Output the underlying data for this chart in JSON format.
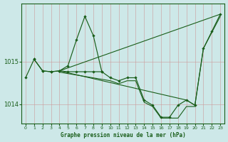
{
  "title": "Graphe pression niveau de la mer (hPa)",
  "bg_color": "#cde8e8",
  "line_color": "#1a5e1a",
  "grid_color": "#b8d0d0",
  "xlim": [
    -0.5,
    23.5
  ],
  "ylim": [
    1013.55,
    1016.35
  ],
  "x_ticks": [
    0,
    1,
    2,
    3,
    4,
    5,
    6,
    7,
    8,
    9,
    10,
    11,
    12,
    13,
    14,
    15,
    16,
    17,
    18,
    19,
    20,
    21,
    22,
    23
  ],
  "y_ticks": [
    1014,
    1015
  ],
  "line_spike": {
    "x": [
      1,
      2,
      3,
      4,
      5,
      6,
      7,
      8,
      9
    ],
    "y": [
      1015.05,
      1014.78,
      1014.76,
      1014.78,
      1014.9,
      1015.5,
      1016.05,
      1015.6,
      1014.76
    ]
  },
  "line_main": {
    "x": [
      0,
      1,
      2,
      3,
      4,
      5,
      6,
      7,
      8,
      9,
      10,
      11,
      12,
      13,
      14,
      15,
      16,
      17,
      18,
      19,
      20,
      21,
      22,
      23
    ],
    "y": [
      1014.62,
      1015.05,
      1014.78,
      1014.76,
      1014.78,
      1014.76,
      1014.76,
      1014.76,
      1014.76,
      1014.76,
      1014.62,
      1014.55,
      1014.62,
      1014.62,
      1014.1,
      1013.98,
      1013.7,
      1013.7,
      1013.98,
      1014.1,
      1013.98,
      1015.3,
      1015.7,
      1016.1
    ]
  },
  "line_trend_top": {
    "x": [
      4,
      23
    ],
    "y": [
      1014.78,
      1016.1
    ]
  },
  "line_trend_mid": {
    "x": [
      4,
      19,
      20,
      21,
      23
    ],
    "y": [
      1014.78,
      1014.1,
      1013.98,
      1015.3,
      1016.05
    ]
  },
  "line_trend_low": {
    "x": [
      4,
      10,
      11,
      12,
      13,
      14,
      15,
      16,
      17,
      18,
      19,
      20
    ],
    "y": [
      1014.75,
      1014.55,
      1014.48,
      1014.55,
      1014.55,
      1014.05,
      1013.95,
      1013.68,
      1013.68,
      1013.68,
      1013.95,
      1013.95
    ]
  },
  "line_from_start": {
    "x": [
      0,
      1,
      4
    ],
    "y": [
      1014.62,
      1015.05,
      1014.78
    ]
  }
}
